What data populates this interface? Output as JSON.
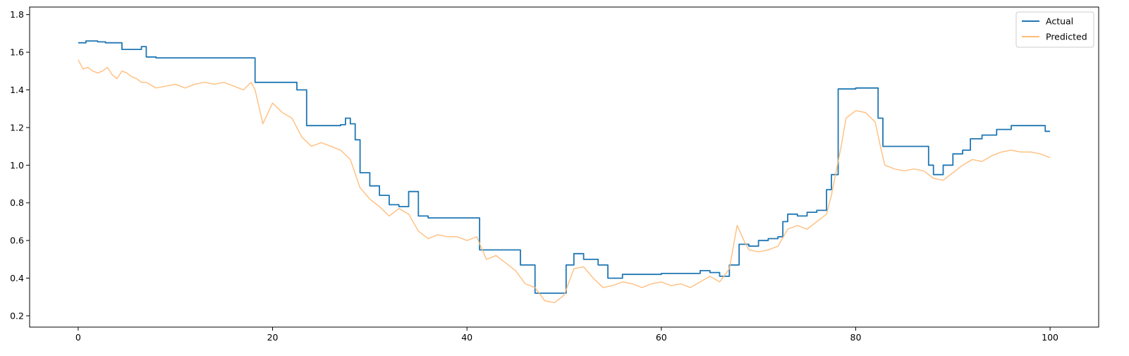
{
  "chart_data": {
    "type": "line",
    "title": "",
    "xlabel": "",
    "ylabel": "",
    "xlim": [
      -5,
      105
    ],
    "ylim": [
      0.14,
      1.84
    ],
    "xticks": [
      0,
      20,
      40,
      60,
      80,
      100
    ],
    "yticks": [
      0.2,
      0.4,
      0.6,
      0.8,
      1.0,
      1.2,
      1.4,
      1.6,
      1.8
    ],
    "ytick_labels": [
      "0.2",
      "0.4",
      "0.6",
      "0.8",
      "1.0",
      "1.2",
      "1.4",
      "1.6",
      "1.8"
    ],
    "grid": false,
    "legend": {
      "position": "top-right"
    },
    "series": [
      {
        "name": "Actual",
        "color": "#1f77b4",
        "step": true,
        "x": [
          0,
          0.8,
          1.5,
          2.0,
          2.8,
          4.5,
          6.0,
          6.5,
          7.0,
          8.0,
          18.2,
          20.0,
          22.5,
          23.5,
          24.5,
          27.0,
          27.5,
          28.0,
          28.5,
          29.0,
          30.0,
          31.0,
          32.0,
          33.0,
          34.0,
          35.0,
          36.0,
          38.0,
          41.3,
          44.5,
          45.5,
          47.0,
          50.2,
          51.0,
          52.0,
          53.5,
          54.5,
          56.0,
          60.0,
          63.0,
          64.0,
          65.0,
          66.0,
          67.0,
          68.0,
          69.0,
          70.0,
          71.0,
          72.0,
          72.5,
          73.0,
          74.0,
          75.0,
          76.0,
          77.0,
          77.5,
          78.2,
          80.0,
          82.3,
          82.8,
          86.0,
          87.5,
          88.0,
          89.0,
          90.0,
          91.0,
          91.8,
          93.0,
          94.5,
          96.0,
          98.0,
          99.5,
          100.0
        ],
        "values": [
          1.65,
          1.66,
          1.66,
          1.655,
          1.65,
          1.615,
          1.615,
          1.63,
          1.575,
          1.57,
          1.44,
          1.44,
          1.4,
          1.21,
          1.21,
          1.215,
          1.25,
          1.22,
          1.135,
          0.96,
          0.89,
          0.84,
          0.79,
          0.78,
          0.86,
          0.73,
          0.72,
          0.72,
          0.55,
          0.55,
          0.47,
          0.32,
          0.47,
          0.53,
          0.5,
          0.47,
          0.4,
          0.42,
          0.425,
          0.425,
          0.44,
          0.43,
          0.41,
          0.47,
          0.58,
          0.57,
          0.6,
          0.61,
          0.62,
          0.7,
          0.74,
          0.73,
          0.75,
          0.76,
          0.87,
          0.95,
          1.405,
          1.41,
          1.25,
          1.1,
          1.1,
          1.0,
          0.95,
          1.0,
          1.06,
          1.08,
          1.14,
          1.16,
          1.19,
          1.21,
          1.21,
          1.18,
          1.18
        ]
      },
      {
        "name": "Predicted",
        "color": "#ffbb78",
        "step": false,
        "x": [
          0,
          0.5,
          1.0,
          1.5,
          2.0,
          2.5,
          3.0,
          3.5,
          4.0,
          4.5,
          5.0,
          5.5,
          6.0,
          6.5,
          7.0,
          8.0,
          9.0,
          10.0,
          11.0,
          12.0,
          13.0,
          14.0,
          15.0,
          16.0,
          17.0,
          17.8,
          18.2,
          19.0,
          20.0,
          21.0,
          22.0,
          23.0,
          24.0,
          25.0,
          26.0,
          27.0,
          28.0,
          29.0,
          30.0,
          31.0,
          32.0,
          33.0,
          34.0,
          35.0,
          36.0,
          37.0,
          38.0,
          39.0,
          40.0,
          41.0,
          42.0,
          43.0,
          44.0,
          45.0,
          46.0,
          47.0,
          48.0,
          49.0,
          50.0,
          51.0,
          52.0,
          53.0,
          54.0,
          55.0,
          56.0,
          57.0,
          58.0,
          59.0,
          60.0,
          61.0,
          62.0,
          63.0,
          64.0,
          65.0,
          66.0,
          67.0,
          67.8,
          68.5,
          69.0,
          70.0,
          71.0,
          72.0,
          73.0,
          74.0,
          75.0,
          76.0,
          77.0,
          77.5,
          78.0,
          78.5,
          79.0,
          80.0,
          81.0,
          82.0,
          82.5,
          83.0,
          84.0,
          85.0,
          86.0,
          87.0,
          88.0,
          89.0,
          90.0,
          91.0,
          92.0,
          93.0,
          94.0,
          95.0,
          96.0,
          97.0,
          98.0,
          99.0,
          100.0
        ],
        "values": [
          1.56,
          1.51,
          1.52,
          1.5,
          1.49,
          1.5,
          1.52,
          1.48,
          1.46,
          1.5,
          1.49,
          1.47,
          1.46,
          1.44,
          1.44,
          1.41,
          1.42,
          1.43,
          1.41,
          1.43,
          1.44,
          1.43,
          1.44,
          1.42,
          1.4,
          1.44,
          1.4,
          1.22,
          1.33,
          1.28,
          1.25,
          1.15,
          1.1,
          1.12,
          1.1,
          1.08,
          1.03,
          0.88,
          0.82,
          0.78,
          0.73,
          0.77,
          0.74,
          0.65,
          0.61,
          0.63,
          0.62,
          0.62,
          0.6,
          0.62,
          0.5,
          0.52,
          0.48,
          0.44,
          0.37,
          0.35,
          0.28,
          0.27,
          0.31,
          0.45,
          0.46,
          0.4,
          0.35,
          0.36,
          0.38,
          0.37,
          0.35,
          0.37,
          0.38,
          0.36,
          0.37,
          0.35,
          0.38,
          0.41,
          0.38,
          0.45,
          0.68,
          0.6,
          0.55,
          0.54,
          0.55,
          0.57,
          0.66,
          0.68,
          0.66,
          0.7,
          0.74,
          0.84,
          0.97,
          1.1,
          1.25,
          1.29,
          1.28,
          1.23,
          1.11,
          1.0,
          0.98,
          0.97,
          0.98,
          0.97,
          0.93,
          0.92,
          0.96,
          1.0,
          1.03,
          1.02,
          1.05,
          1.07,
          1.08,
          1.07,
          1.07,
          1.06,
          1.04
        ]
      }
    ]
  }
}
